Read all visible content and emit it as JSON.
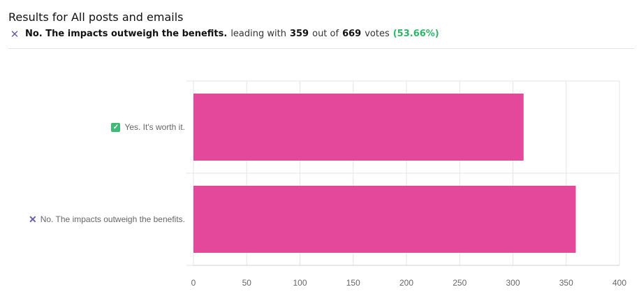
{
  "header": {
    "title": "Results for All posts and emails",
    "leading_icon": "x-mark-icon",
    "leading_option": "No. The impacts outweigh the benefits.",
    "leading_text": "leading with",
    "leading_votes": "359",
    "out_of_text": "out of",
    "total_votes": "669",
    "votes_text": "votes",
    "percent": "(53.66%)"
  },
  "colors": {
    "bar": "#e4489b",
    "grid": "#e6e6e6",
    "axis": "#d0d0d0",
    "tick_text": "#666666",
    "check": "#3fba78",
    "cross": "#6b5ea8",
    "percent": "#2fb56a"
  },
  "chart_data": {
    "type": "bar",
    "orientation": "horizontal",
    "categories": [
      {
        "label": "Yes. It's worth it.",
        "icon": "check-box-icon"
      },
      {
        "label": "No. The impacts outweigh the benefits.",
        "icon": "x-mark-icon"
      }
    ],
    "values": [
      310,
      359
    ],
    "xlim": [
      0,
      400
    ],
    "xticks": [
      0,
      50,
      100,
      150,
      200,
      250,
      300,
      350,
      400
    ],
    "grid": true,
    "legend": "none"
  }
}
